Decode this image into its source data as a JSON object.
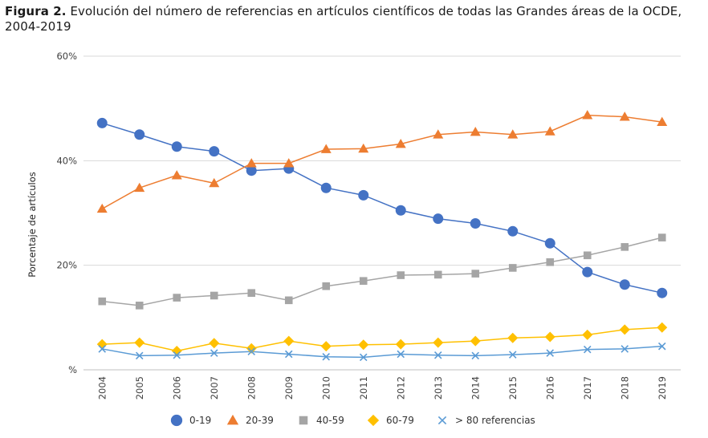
{
  "figure": {
    "label": "Figura 2.",
    "caption": "Evolución del número de referencias en artículos científicos de todas las Grandes áreas de la OCDE, 2004-2019"
  },
  "chart_data": {
    "type": "line",
    "ylabel": "Porcentaje de artículos",
    "xlabel": "",
    "ylim": [
      0,
      60
    ],
    "yticks": [
      0,
      20,
      40,
      60
    ],
    "ytick_labels": [
      "%",
      "20%",
      "40%",
      "60%"
    ],
    "grid": true,
    "legend_position": "bottom",
    "x": [
      "2004",
      "2005",
      "2006",
      "2007",
      "2008",
      "2009",
      "2010",
      "2011",
      "2012",
      "2013",
      "2014",
      "2015",
      "2016",
      "2017",
      "2018",
      "2019"
    ],
    "series": [
      {
        "name": "0-19",
        "marker": "circle",
        "color": "#4472C4",
        "values": [
          47.2,
          45.0,
          42.7,
          41.8,
          38.1,
          38.5,
          34.8,
          33.4,
          30.5,
          28.9,
          28.0,
          26.5,
          24.2,
          18.7,
          16.3,
          14.7
        ]
      },
      {
        "name": "20-39",
        "marker": "triangle",
        "color": "#ED7D31",
        "values": [
          30.8,
          34.8,
          37.2,
          35.7,
          39.5,
          39.5,
          42.2,
          42.3,
          43.2,
          45.0,
          45.5,
          45.0,
          45.6,
          48.7,
          48.4,
          47.4
        ]
      },
      {
        "name": "40-59",
        "marker": "square",
        "color": "#A5A5A5",
        "values": [
          13.1,
          12.3,
          13.8,
          14.2,
          14.7,
          13.3,
          16.0,
          17.0,
          18.1,
          18.2,
          18.4,
          19.5,
          20.6,
          21.9,
          23.5,
          25.3
        ]
      },
      {
        "name": "60-79",
        "marker": "diamond",
        "color": "#FFC000",
        "values": [
          4.9,
          5.2,
          3.6,
          5.1,
          4.1,
          5.5,
          4.5,
          4.8,
          4.9,
          5.2,
          5.5,
          6.1,
          6.3,
          6.7,
          7.7,
          8.1
        ]
      },
      {
        "name": "> 80 referencias",
        "marker": "x",
        "color": "#5B9BD5",
        "values": [
          4.0,
          2.7,
          2.8,
          3.2,
          3.5,
          3.0,
          2.5,
          2.4,
          3.0,
          2.8,
          2.7,
          2.9,
          3.2,
          3.9,
          4.0,
          4.5
        ]
      }
    ]
  }
}
